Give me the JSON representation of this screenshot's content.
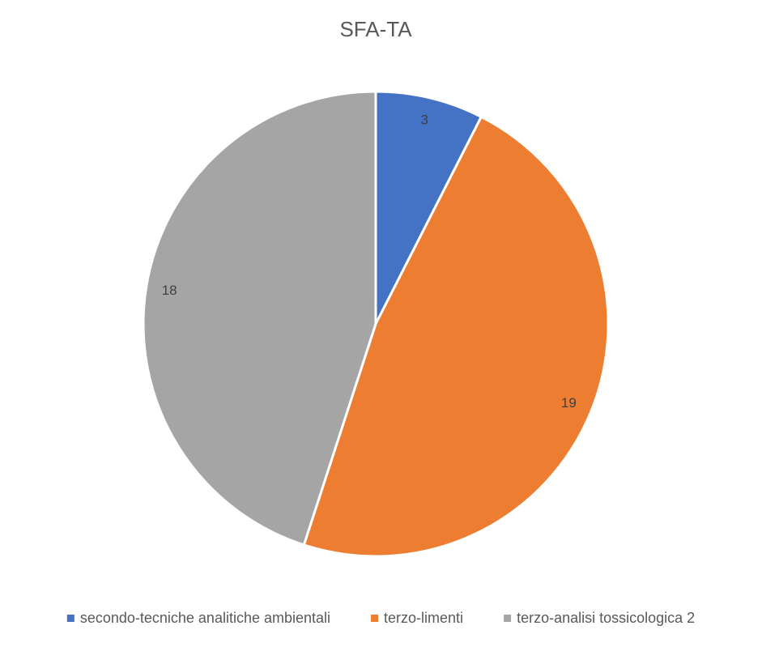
{
  "chart_data": {
    "type": "pie",
    "title": "SFA-TA",
    "categories": [
      "secondo-tecniche analitiche ambientali",
      "terzo-limenti",
      "terzo-analisi tossicologica 2"
    ],
    "values": [
      3,
      19,
      18
    ],
    "colors": [
      "#4472c4",
      "#ed7d31",
      "#a5a5a5"
    ],
    "legend": "bottom"
  }
}
